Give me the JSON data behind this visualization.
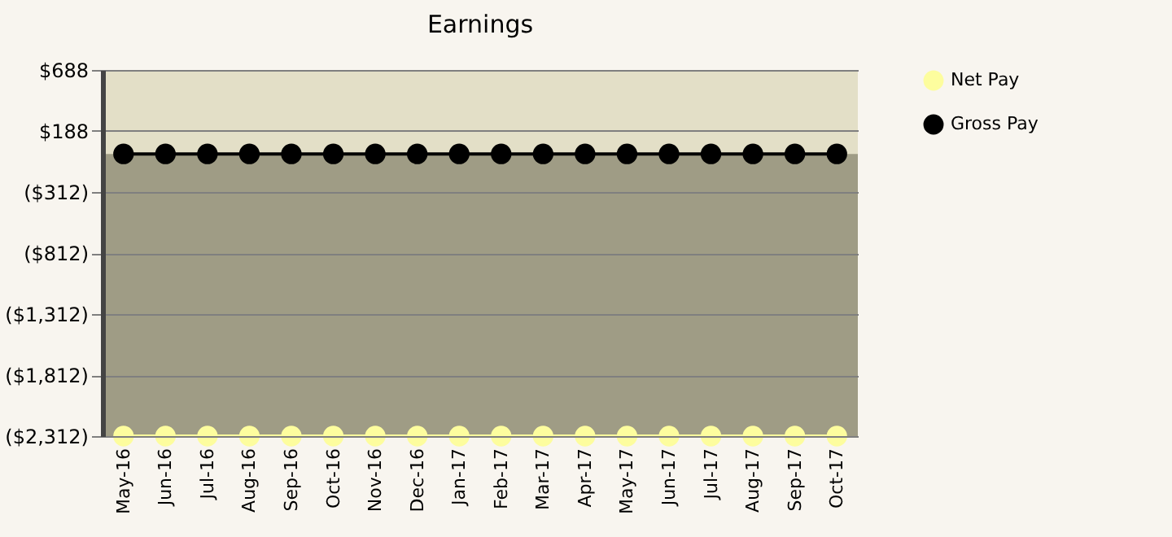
{
  "chart_data": {
    "type": "line",
    "title": "Earnings",
    "categories": [
      "May-16",
      "Jun-16",
      "Jul-16",
      "Aug-16",
      "Sep-16",
      "Oct-16",
      "Nov-16",
      "Dec-16",
      "Jan-17",
      "Feb-17",
      "Mar-17",
      "Apr-17",
      "May-17",
      "Jun-17",
      "Jul-17",
      "Aug-17",
      "Sep-17",
      "Oct-17"
    ],
    "series": [
      {
        "name": "Net Pay",
        "color": "#fdfd9e",
        "values": [
          -2312,
          -2312,
          -2312,
          -2312,
          -2312,
          -2312,
          -2312,
          -2312,
          -2312,
          -2312,
          -2312,
          -2312,
          -2312,
          -2312,
          -2312,
          -2312,
          -2312,
          -2312
        ]
      },
      {
        "name": "Gross Pay",
        "color": "#000000",
        "values": [
          0,
          0,
          0,
          0,
          0,
          0,
          0,
          0,
          0,
          0,
          0,
          0,
          0,
          0,
          0,
          0,
          0,
          0
        ]
      }
    ],
    "bands": [
      {
        "axis": "y",
        "from": -2312,
        "to": 0,
        "color": "#9f9c85"
      }
    ],
    "ylim": [
      -2312,
      688
    ],
    "yticks": [
      {
        "value": -2312,
        "label": "($2,312)"
      },
      {
        "value": -1812,
        "label": "($1,812)"
      },
      {
        "value": -1312,
        "label": "($1,312)"
      },
      {
        "value": -812,
        "label": "($812)"
      },
      {
        "value": -312,
        "label": "($312)"
      },
      {
        "value": 188,
        "label": "$188"
      },
      {
        "value": 688,
        "label": "$688"
      }
    ],
    "grid": "y",
    "legend": "right",
    "marker": "circle",
    "line_style": "solid"
  }
}
